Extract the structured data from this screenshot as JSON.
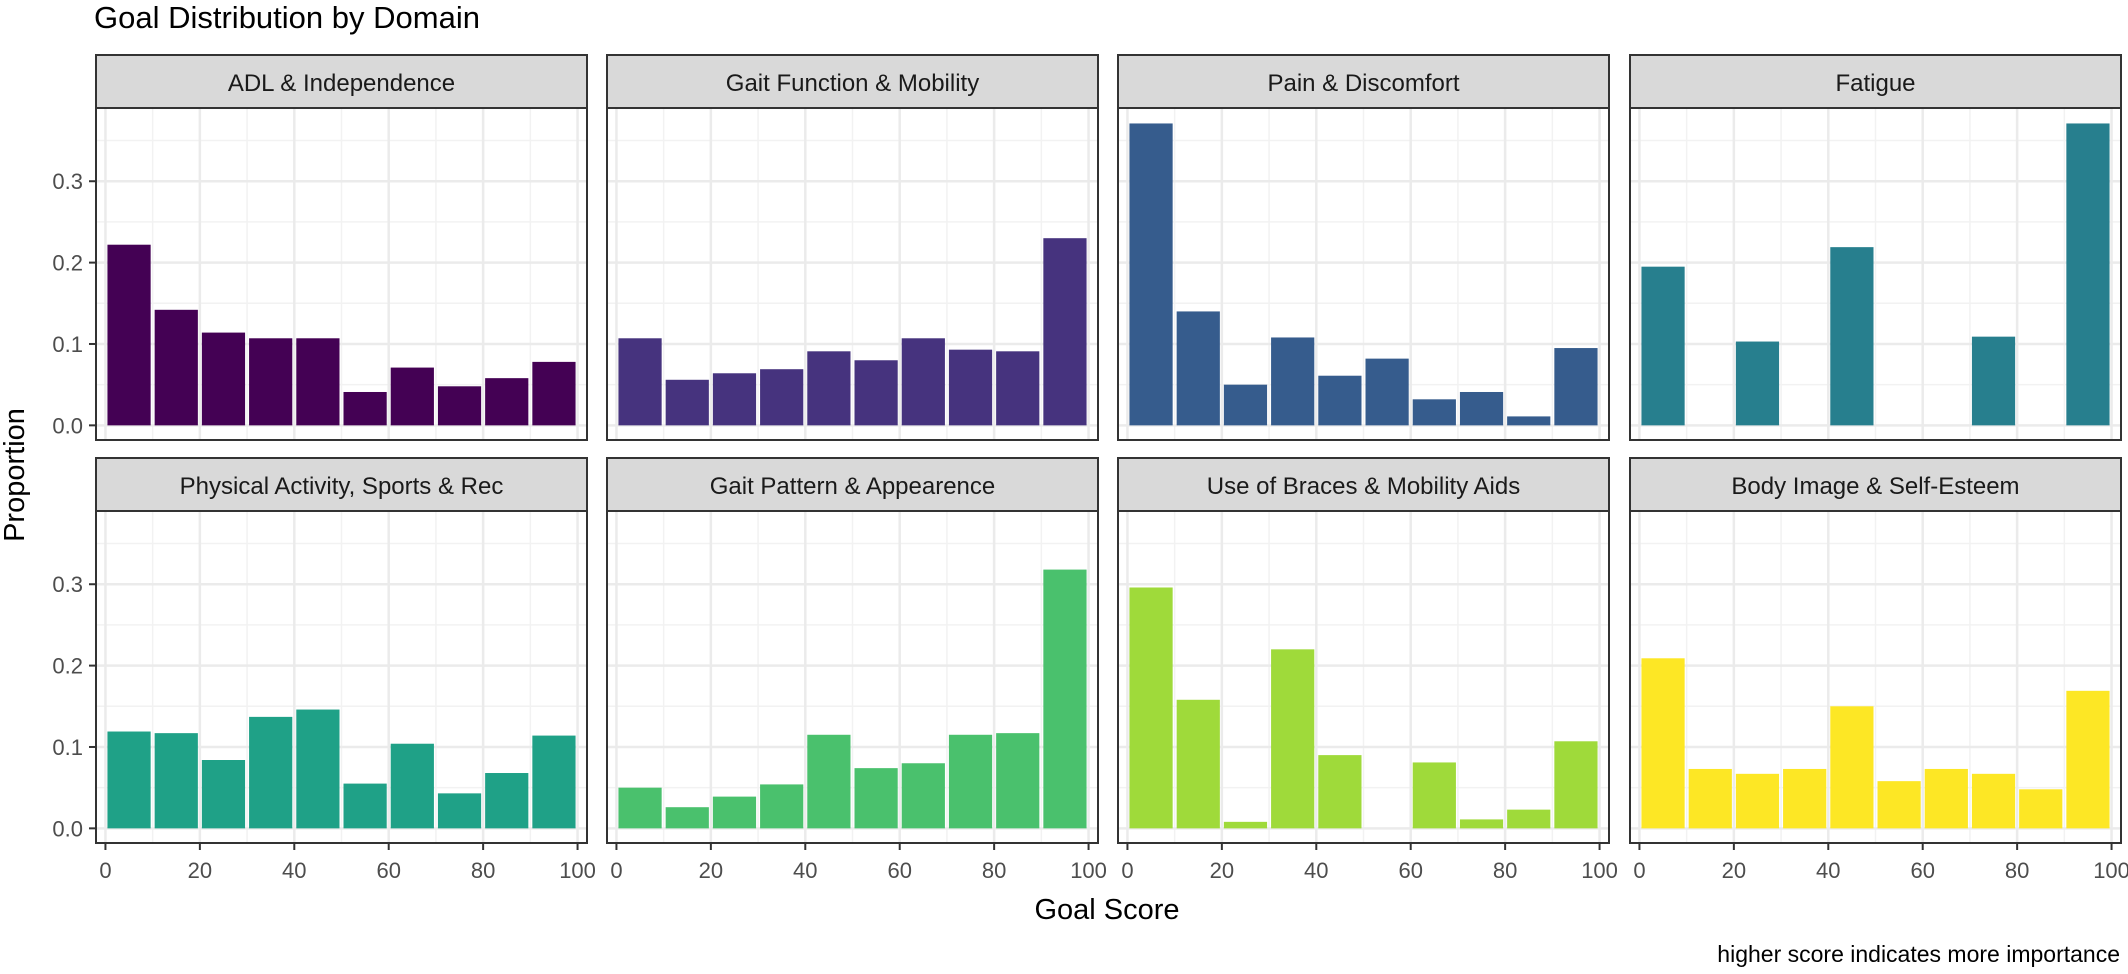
{
  "chart_data": {
    "type": "bar",
    "title": "Goal Distribution by Domain",
    "xlabel": "Goal Score",
    "ylabel": "Proportion",
    "caption": "higher score indicates more importance",
    "xlim": [
      -2,
      102
    ],
    "ylim": [
      -0.018,
      0.39
    ],
    "x_ticks": [
      "0",
      "20",
      "40",
      "60",
      "80",
      "100"
    ],
    "y_ticks": [
      "0.0",
      "0.1",
      "0.2",
      "0.3"
    ],
    "grid": true,
    "bin_width": 10,
    "bin_centers": [
      5,
      15,
      25,
      35,
      45,
      55,
      65,
      75,
      85,
      95
    ],
    "panels": [
      {
        "title": "ADL & Independence",
        "color": "#440154",
        "values": [
          0.222,
          0.142,
          0.114,
          0.107,
          0.107,
          0.041,
          0.071,
          0.048,
          0.058,
          0.078
        ]
      },
      {
        "title": "Gait Function & Mobility",
        "color": "#46337E",
        "values": [
          0.107,
          0.056,
          0.064,
          0.069,
          0.091,
          0.08,
          0.107,
          0.093,
          0.091,
          0.23
        ]
      },
      {
        "title": "Pain & Discomfort",
        "color": "#365C8D",
        "values": [
          0.371,
          0.14,
          0.05,
          0.108,
          0.061,
          0.082,
          0.032,
          0.041,
          0.011,
          0.095
        ]
      },
      {
        "title": "Fatigue",
        "color": "#277F8E",
        "values": [
          0.195,
          0,
          0.103,
          0,
          0.219,
          0,
          0,
          0.109,
          0,
          0.371
        ]
      },
      {
        "title": "Physical Activity, Sports & Rec",
        "color": "#1FA187",
        "values": [
          0.119,
          0.117,
          0.084,
          0.137,
          0.146,
          0.055,
          0.104,
          0.043,
          0.068,
          0.114
        ]
      },
      {
        "title": "Gait Pattern & Appearence",
        "color": "#4AC16D",
        "values": [
          0.05,
          0.026,
          0.039,
          0.054,
          0.115,
          0.074,
          0.08,
          0.115,
          0.117,
          0.318
        ]
      },
      {
        "title": "Use of Braces & Mobility Aids",
        "color": "#9FDA3A",
        "values": [
          0.296,
          0.158,
          0.008,
          0.22,
          0.09,
          0,
          0.081,
          0.011,
          0.023,
          0.107
        ]
      },
      {
        "title": "Body Image & Self-Esteem",
        "color": "#FDE725",
        "values": [
          0.209,
          0.073,
          0.067,
          0.073,
          0.15,
          0.058,
          0.073,
          0.067,
          0.048,
          0.169
        ]
      }
    ]
  }
}
